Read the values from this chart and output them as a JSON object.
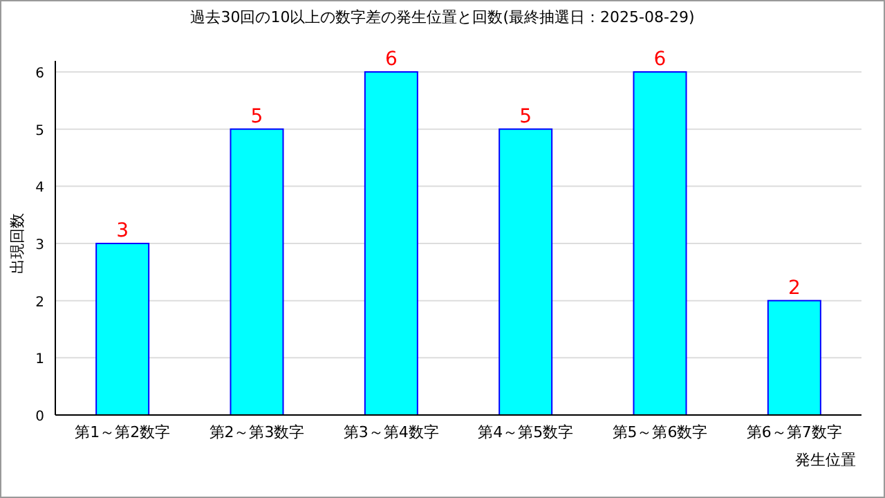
{
  "chart_data": {
    "type": "bar",
    "title": "過去30回の10以上の数字差の発生位置と回数(最終抽選日：2025-08-29)",
    "xlabel": "発生位置",
    "ylabel": "出現回数",
    "categories": [
      "第1～第2数字",
      "第2～第3数字",
      "第3～第4数字",
      "第4～第5数字",
      "第5～第6数字",
      "第6～第7数字"
    ],
    "values": [
      3,
      5,
      6,
      5,
      6,
      2
    ],
    "color": "#00ffff",
    "ylim": [
      0,
      6
    ],
    "yticks": [
      0,
      1,
      2,
      3,
      4,
      5,
      6
    ],
    "grid": "y",
    "data_labels": true
  }
}
